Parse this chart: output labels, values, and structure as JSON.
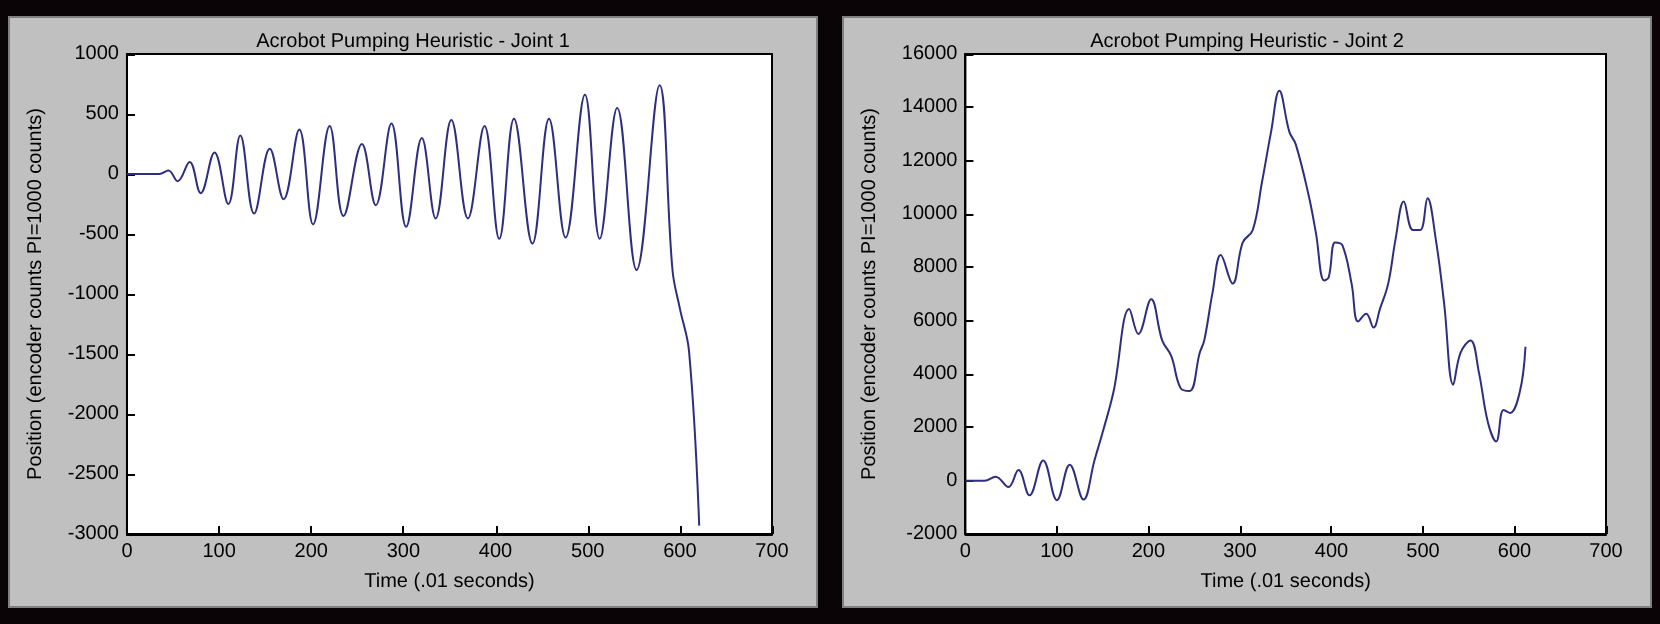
{
  "chart_data": [
    {
      "type": "line",
      "title": "Acrobot Pumping Heuristic - Joint 1",
      "xlabel": "Time (.01 seconds)",
      "ylabel": "Position (encoder counts PI=1000 counts)",
      "xlim": [
        0,
        700
      ],
      "ylim": [
        -3000,
        1000
      ],
      "xticks": [
        0,
        100,
        200,
        300,
        400,
        500,
        600,
        700
      ],
      "yticks": [
        -3000,
        -2500,
        -2000,
        -1500,
        -1000,
        -500,
        0,
        500,
        1000
      ],
      "x": [
        0,
        35,
        45,
        55,
        68,
        80,
        95,
        110,
        123,
        138,
        155,
        170,
        187,
        202,
        220,
        235,
        255,
        270,
        287,
        303,
        320,
        335,
        352,
        370,
        388,
        404,
        420,
        440,
        458,
        476,
        497,
        513,
        532,
        553,
        578,
        592,
        600,
        610,
        621
      ],
      "series": [
        {
          "color": "#2e2e80",
          "values": [
            0,
            0,
            30,
            -60,
            100,
            -160,
            180,
            -250,
            320,
            -330,
            210,
            -210,
            370,
            -420,
            400,
            -350,
            250,
            -260,
            420,
            -440,
            300,
            -370,
            450,
            -370,
            400,
            -540,
            460,
            -580,
            460,
            -530,
            660,
            -540,
            550,
            -800,
            740,
            -800,
            -1120,
            -1480,
            -2930
          ]
        }
      ]
    },
    {
      "type": "line",
      "title": "Acrobot Pumping Heuristic - Joint 2",
      "xlabel": "Time (.01 seconds)",
      "ylabel": "Position (encoder counts PI=1000 counts)",
      "xlim": [
        0,
        700
      ],
      "ylim": [
        -2000,
        16000
      ],
      "xticks": [
        0,
        100,
        200,
        300,
        400,
        500,
        600,
        700
      ],
      "yticks": [
        -2000,
        0,
        2000,
        4000,
        6000,
        8000,
        10000,
        12000,
        14000,
        16000
      ],
      "x": [
        0,
        21,
        33,
        47,
        58,
        70,
        85,
        100,
        114,
        129,
        141,
        151,
        162,
        179,
        189,
        203,
        215,
        225,
        235,
        245,
        256,
        261,
        270,
        279,
        292,
        303,
        314,
        324,
        334,
        343,
        354,
        361,
        375,
        383,
        392,
        397,
        404,
        412,
        422,
        429,
        438,
        446,
        453,
        462,
        470,
        479,
        489,
        497,
        505,
        514,
        523,
        533,
        541,
        552,
        561,
        571,
        580,
        588,
        595,
        606,
        612
      ],
      "series": [
        {
          "color": "#2e2e80",
          "values": [
            0,
            0,
            150,
            -240,
            400,
            -550,
            760,
            -730,
            600,
            -710,
            760,
            1940,
            3360,
            6440,
            5500,
            6800,
            5260,
            4670,
            3480,
            3360,
            4790,
            5260,
            7040,
            8460,
            7390,
            8930,
            9400,
            11180,
            13080,
            14620,
            13080,
            12610,
            10710,
            9290,
            7510,
            7630,
            8930,
            8820,
            7390,
            5970,
            6260,
            5740,
            6440,
            7390,
            9050,
            10470,
            9400,
            9400,
            10590,
            9050,
            6680,
            3600,
            4790,
            5260,
            4080,
            2180,
            1470,
            2650,
            2540,
            3360,
            5020
          ]
        }
      ]
    }
  ]
}
